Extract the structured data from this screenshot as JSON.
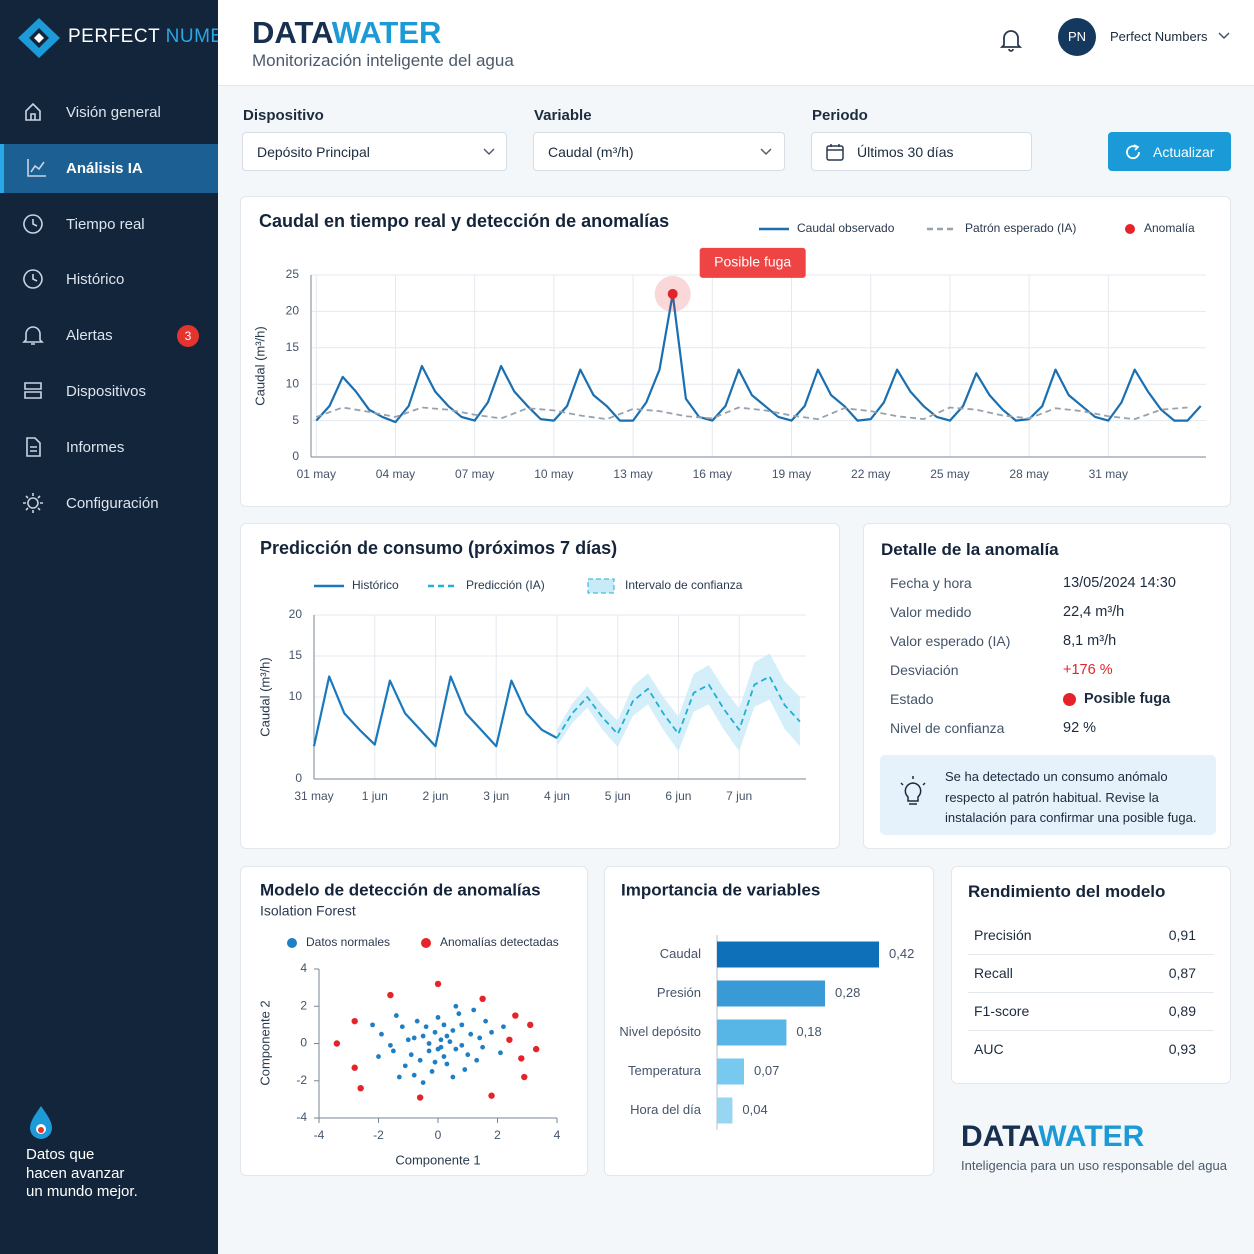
{
  "sidebar": {
    "brand_first": "PERFECT",
    "brand_second": "NUMBERS",
    "nav": [
      {
        "label": "Visión general"
      },
      {
        "label": "Análisis IA",
        "active": true
      },
      {
        "label": "Tiempo real"
      },
      {
        "label": "Histórico"
      },
      {
        "label": "Alertas",
        "badge": 3
      },
      {
        "label": "Dispositivos"
      },
      {
        "label": "Informes"
      },
      {
        "label": "Configuración"
      }
    ],
    "tagline": [
      "Datos que",
      "hacen avanzar",
      "un mundo mejor."
    ]
  },
  "header": {
    "title_first": "DATA",
    "title_second": "WATER",
    "subtitle": "Monitorización inteligente del agua",
    "avatar": "PN",
    "user": "Perfect Numbers"
  },
  "filters": [
    {
      "label": "Dispositivo",
      "value": "Depósito Principal"
    },
    {
      "label": "Variable",
      "value": "Caudal (m³/h)"
    },
    {
      "label": "Periodo",
      "value": "Últimos 30 días"
    }
  ],
  "refresh_button": "Actualizar",
  "chart_data": [
    {
      "type": "line",
      "title": "Caudal en tiempo real y detección de anomalías",
      "y_label": "Caudal (m³/h)",
      "xlim": [
        0.8,
        34.7
      ],
      "xticks": [
        {
          "value": 1,
          "label": "01 may"
        },
        {
          "value": 4,
          "label": "04 may"
        },
        {
          "value": 7,
          "label": "07 may"
        },
        {
          "value": 10,
          "label": "10 may"
        },
        {
          "value": 13,
          "label": "13 may"
        },
        {
          "value": 16,
          "label": "16 may"
        },
        {
          "value": 19,
          "label": "19 may"
        },
        {
          "value": 22,
          "label": "22 may"
        },
        {
          "value": 25,
          "label": "25 may"
        },
        {
          "value": 28,
          "label": "28 may"
        },
        {
          "value": 31,
          "label": "31 may"
        }
      ],
      "ylim": [
        0,
        25
      ],
      "yticks": [
        0,
        5,
        10,
        15,
        20,
        25
      ],
      "grid": true,
      "series": [
        {
          "name": "Caudal observado",
          "color": "#1a6fb0",
          "x": [
            1,
            1.5,
            2,
            2.5,
            3,
            3.5,
            4,
            4.5,
            5,
            5.5,
            6,
            6.5,
            7,
            7.5,
            8,
            8.5,
            9,
            9.5,
            10,
            10.5,
            11,
            11.5,
            12,
            12.5,
            13,
            13.5,
            14,
            14.5,
            15,
            15.5,
            16,
            16.5,
            17,
            17.5,
            18,
            18.5,
            19,
            19.5,
            20,
            20.5,
            21,
            21.5,
            22,
            22.5,
            23,
            23.5,
            24,
            24.5,
            25,
            25.5,
            26,
            26.5,
            27,
            27.5,
            28,
            28.5,
            29,
            29.5,
            30,
            30.5,
            31,
            31.5,
            32,
            32.5,
            33,
            33.5,
            34,
            34.5
          ],
          "values": [
            5,
            7,
            11,
            9,
            6.5,
            5.5,
            4.8,
            7,
            12.5,
            9,
            7,
            5.5,
            5,
            7.5,
            12.5,
            9,
            7,
            5.2,
            5,
            7,
            12,
            8.5,
            7,
            5,
            5,
            7.5,
            12,
            22.4,
            8,
            5.5,
            5,
            7,
            12,
            8.5,
            7,
            5.5,
            5,
            7,
            12,
            8.5,
            7,
            5,
            5.2,
            7.5,
            12,
            9,
            7,
            5.5,
            5,
            7,
            11.5,
            8.5,
            6.5,
            5,
            5.2,
            7,
            12,
            8.5,
            7,
            5.5,
            5,
            7.5,
            12,
            9,
            6.5,
            5,
            5,
            7
          ]
        },
        {
          "name": "Patrón esperado (IA)",
          "color": "#98a2ad",
          "dash": true,
          "x": [
            1,
            2,
            3,
            4,
            5,
            6,
            7,
            8,
            9,
            10,
            11,
            12,
            13,
            14,
            15,
            16,
            17,
            18,
            19,
            20,
            21,
            22,
            23,
            24,
            25,
            26,
            27,
            28,
            29,
            30,
            31,
            32,
            33,
            34
          ],
          "values": [
            5.5,
            6.8,
            6.2,
            5.5,
            6.8,
            6.5,
            5.8,
            5.3,
            6.7,
            6.4,
            5.7,
            5.2,
            6.6,
            6.3,
            5.6,
            5.3,
            6.8,
            6.4,
            5.7,
            5.2,
            6.7,
            6.3,
            5.6,
            5.2,
            6.8,
            6.5,
            5.7,
            5.3,
            6.7,
            6.3,
            5.6,
            5.2,
            6.5,
            6.8
          ]
        },
        {
          "name": "Anomalía",
          "color": "#e5232a",
          "kind": "point",
          "x": [
            14.5
          ],
          "values": [
            22.4
          ],
          "annotation": "Posible fuga"
        }
      ]
    },
    {
      "type": "line",
      "title": "Predicción de consumo (próximos 7 días)",
      "y_label": "Caudal (m³/h)",
      "xlim": [
        0,
        8.1
      ],
      "xticks": [
        {
          "value": 0,
          "label": "31 may"
        },
        {
          "value": 1,
          "label": "1 jun"
        },
        {
          "value": 2,
          "label": "2 jun"
        },
        {
          "value": 3,
          "label": "3 jun"
        },
        {
          "value": 4,
          "label": "4 jun"
        },
        {
          "value": 5,
          "label": "5 jun"
        },
        {
          "value": 6,
          "label": "6 jun"
        },
        {
          "value": 7,
          "label": "7 jun"
        }
      ],
      "ylim": [
        0,
        20
      ],
      "yticks": [
        0,
        10,
        15,
        20
      ],
      "grid": true,
      "series": [
        {
          "name": "Histórico",
          "color": "#1a78bd",
          "x": [
            0,
            0.25,
            0.5,
            0.75,
            1,
            1.25,
            1.5,
            1.75,
            2,
            2.25,
            2.5,
            2.75,
            3,
            3.25,
            3.5,
            3.75,
            4
          ],
          "values": [
            4,
            12.5,
            8,
            6,
            4.2,
            12,
            8,
            6,
            4,
            12.5,
            8,
            6,
            4,
            12,
            8,
            6,
            5
          ]
        },
        {
          "name": "Predicción (IA)",
          "color": "#1fb0d3",
          "dash": true,
          "x": [
            4,
            4.25,
            4.5,
            4.75,
            5,
            5.25,
            5.5,
            5.75,
            6,
            6.25,
            6.5,
            6.75,
            7,
            7.25,
            7.5,
            7.75,
            8
          ],
          "values": [
            5,
            8,
            10,
            7.5,
            5.5,
            9.5,
            11,
            8,
            5.5,
            10.5,
            11.5,
            8.5,
            6,
            11.5,
            12.5,
            9,
            7
          ]
        },
        {
          "name": "Intervalo de confianza",
          "color": "#c9ebf8",
          "kind": "band",
          "x": [
            4,
            4.25,
            4.5,
            4.75,
            5,
            5.25,
            5.5,
            5.75,
            6,
            6.25,
            6.5,
            6.75,
            7,
            7.25,
            7.5,
            7.75,
            8
          ],
          "low": [
            4,
            6.8,
            8.7,
            6,
            3.9,
            7.7,
            9.1,
            6,
            3.4,
            8.2,
            9.1,
            6,
            3.4,
            8.8,
            9.7,
            6.1,
            4
          ],
          "high": [
            6,
            9.2,
            11.3,
            9,
            7.1,
            11.3,
            12.9,
            10,
            7.6,
            12.8,
            13.9,
            11,
            8.6,
            14.2,
            15.3,
            11.9,
            10
          ]
        }
      ]
    },
    {
      "type": "scatter",
      "title": "Modelo de detección de anomalías",
      "subtitle": "Isolation Forest",
      "x_label": "Componente 1",
      "y_label": "Componente 2",
      "xlim": [
        -4,
        4
      ],
      "xticks": [
        -4,
        -2,
        0,
        2,
        4
      ],
      "ylim": [
        -4,
        4
      ],
      "yticks": [
        -4,
        -2,
        0,
        2,
        4
      ],
      "grid": false,
      "series": [
        {
          "name": "Datos normales",
          "color": "#1f7fc4",
          "x": [
            0.1,
            -0.5,
            0.6,
            -0.9,
            1.1,
            -1.2,
            0.3,
            0.8,
            -0.3,
            1.5,
            -1.6,
            0,
            -0.7,
            0.5,
            -0.2,
            1.3,
            -1.1,
            0.9,
            -0.4,
            0.2,
            1.8,
            -1.9,
            0.7,
            -0.8,
            1.6,
            -1.4,
            0.4,
            -0.6,
            1,
            -1,
            0.1,
            -0.1,
            2.1,
            -2,
            0.6,
            -0.5,
            1.2,
            -1.3,
            2.2,
            -2.2,
            0.3,
            -0.3,
            0.8,
            -0.8,
            0.2,
            -0.1,
            1.4,
            -1.5,
            0,
            0.5
          ],
          "values": [
            0.2,
            0.4,
            -0.3,
            -0.6,
            0.5,
            0.9,
            -1.1,
            1,
            -0.4,
            -0.2,
            -0.1,
            1.4,
            1.2,
            0.7,
            -1.5,
            -0.9,
            -1.2,
            -1.4,
            0.9,
            -0.7,
            0.6,
            0.5,
            1.6,
            -1.7,
            1.2,
            1.5,
            0.1,
            -0.9,
            -0.6,
            0.2,
            -0.2,
            0.6,
            -0.5,
            -0.7,
            2,
            -2.1,
            1.8,
            -1.8,
            0.9,
            1,
            0.4,
            0,
            -0.1,
            0.3,
            1,
            -1,
            0.3,
            -0.4,
            -0.3,
            -1.8
          ]
        },
        {
          "name": "Anomalías detectadas",
          "color": "#e5232a",
          "kind": "point",
          "x": [
            0,
            -3.4,
            3.1,
            2.6,
            1.5,
            -1.6,
            -2.8,
            3.3,
            2.8,
            2.9,
            -2.6,
            -2.8,
            1.8,
            -0.6,
            2.4
          ],
          "values": [
            3.2,
            0,
            1,
            1.5,
            2.4,
            2.6,
            1.2,
            -0.3,
            -0.8,
            -1.8,
            -2.4,
            -1.3,
            -2.8,
            -2.9,
            0.2
          ]
        }
      ]
    },
    {
      "type": "bar",
      "orientation": "horizontal",
      "title": "Importancia de variables",
      "categories": [
        "Caudal",
        "Presión",
        "Nivel depósito",
        "Temperatura",
        "Hora del día"
      ],
      "values": [
        0.42,
        0.28,
        0.18,
        0.07,
        0.04
      ],
      "value_labels": [
        "0,42",
        "0,28",
        "0,18",
        "0,07",
        "0,04"
      ],
      "colors": [
        "#0d70b8",
        "#3a9ad6",
        "#58b6e6",
        "#78c9ef",
        "#97d6f2"
      ],
      "xlim": [
        0,
        0.42
      ]
    }
  ],
  "anomaly_detail": {
    "title": "Detalle de la anomalía",
    "rows": [
      [
        "Fecha y hora",
        "13/05/2024 14:30"
      ],
      [
        "Valor medido",
        "22,4 m³/h"
      ],
      [
        "Valor esperado (IA)",
        "8,1 m³/h"
      ],
      [
        "Desviación",
        "+176 %"
      ],
      [
        "Estado",
        "Posible fuga"
      ],
      [
        "Nivel de confianza",
        "92 %"
      ]
    ],
    "note": "Se ha detectado un consumo anómalo respecto al patrón habitual. Revise la instalación para confirmar una posible fuga."
  },
  "model_performance": {
    "title": "Rendimiento del modelo",
    "rows": [
      [
        "Precisión",
        "0,91"
      ],
      [
        "Recall",
        "0,87"
      ],
      [
        "F1-score",
        "0,89"
      ],
      [
        "AUC",
        "0,93"
      ]
    ]
  },
  "footer": {
    "brand_first": "DATA",
    "brand_second": "WATER",
    "tagline": "Inteligencia para un uso responsable del agua"
  }
}
